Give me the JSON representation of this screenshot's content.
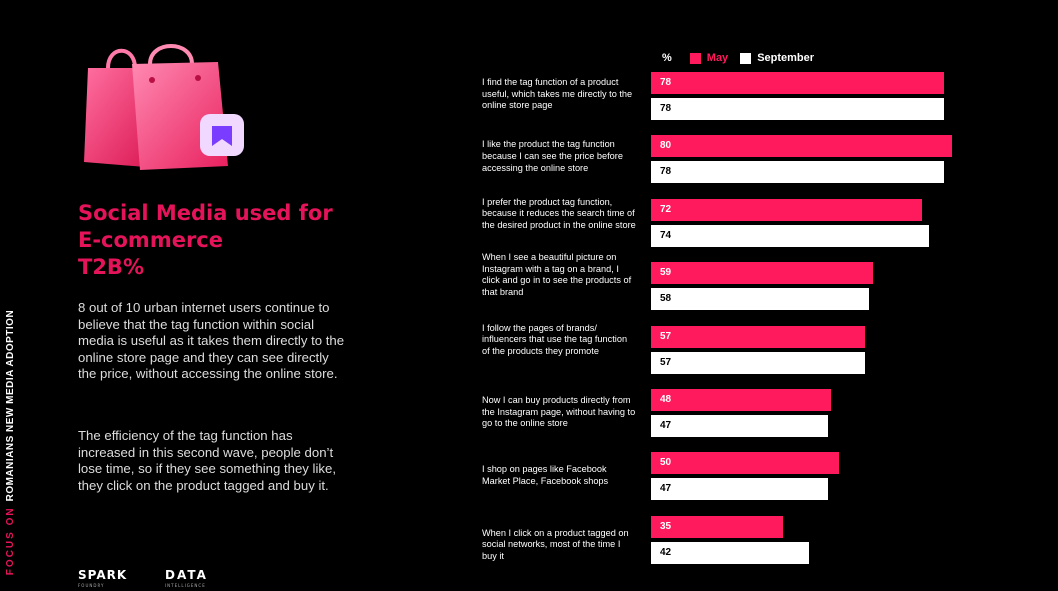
{
  "side_tag": {
    "focus": "FOCUS ON",
    "name": "ROMANIANS NEW MEDIA ADOPTION"
  },
  "heading": {
    "line1": "Social Media used for",
    "line2": "E-commerce",
    "line3": "T2B%"
  },
  "paragraphs": [
    "8 out of 10 urban internet users continue to believe that the tag function within social media is useful as it takes them directly to the online store page and they can see directly the price, without accessing the online store.",
    "The efficiency of the tag function has increased in this second wave, people don’t lose time, so if they see something they like, they click on the product tagged and buy it."
  ],
  "logos": {
    "spark": "SPARK",
    "spark_sub": "FOUNDRY",
    "data": "DATA",
    "data_sub": "INTELLIGENCE"
  },
  "colors": {
    "may": "#ff1a5e",
    "september": "#ffffff",
    "accent": "#e5145a"
  },
  "chart_data": {
    "type": "bar",
    "orientation": "horizontal",
    "unit_label": "%",
    "categories": [
      "I find the tag function of a product useful, which takes me directly to the online store page",
      "I like the product the tag function because I can see the price before accessing the online store",
      "I prefer the product tag function, because it reduces the search time of the desired product in the online store",
      "When I see a beautiful picture on Instagram with a tag on a brand, I click and go in to see the products of that brand",
      "I follow the pages of brands/ influencers that use the tag function of the products they promote",
      "Now I can buy products directly from the Instagram page, without having to go to the online store",
      "I shop on pages like Facebook Market Place, Facebook shops",
      "When I click on a product tagged on social networks, most of the time I buy it"
    ],
    "series": [
      {
        "name": "May",
        "values": [
          78,
          80,
          72,
          59,
          57,
          48,
          50,
          35
        ]
      },
      {
        "name": "September",
        "values": [
          78,
          78,
          74,
          58,
          57,
          47,
          47,
          42
        ]
      }
    ],
    "legend": "top",
    "grid": false
  }
}
